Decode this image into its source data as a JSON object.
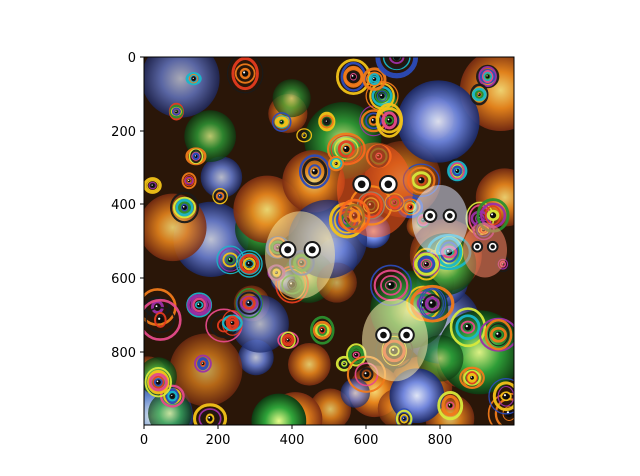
{
  "figure": {
    "image_description_icon": "deep-dream-image-icon",
    "x_ticks": [
      "0",
      "200",
      "400",
      "600",
      "800"
    ],
    "y_ticks": [
      "0",
      "200",
      "400",
      "600",
      "800"
    ],
    "x_tick_values": [
      0,
      200,
      400,
      600,
      800
    ],
    "y_tick_values": [
      0,
      200,
      400,
      600,
      800
    ],
    "x_range": [
      0,
      1000
    ],
    "y_range": [
      0,
      1000
    ],
    "colors": {
      "background": "#ffffff",
      "axis": "#000000",
      "palette": [
        "#e53b1f",
        "#f2c318",
        "#2b8f2e",
        "#2b4bb8",
        "#9b2fa8",
        "#18b7c9",
        "#f07a1a",
        "#1a1a1a",
        "#d7e93a",
        "#e64a8a"
      ]
    }
  }
}
